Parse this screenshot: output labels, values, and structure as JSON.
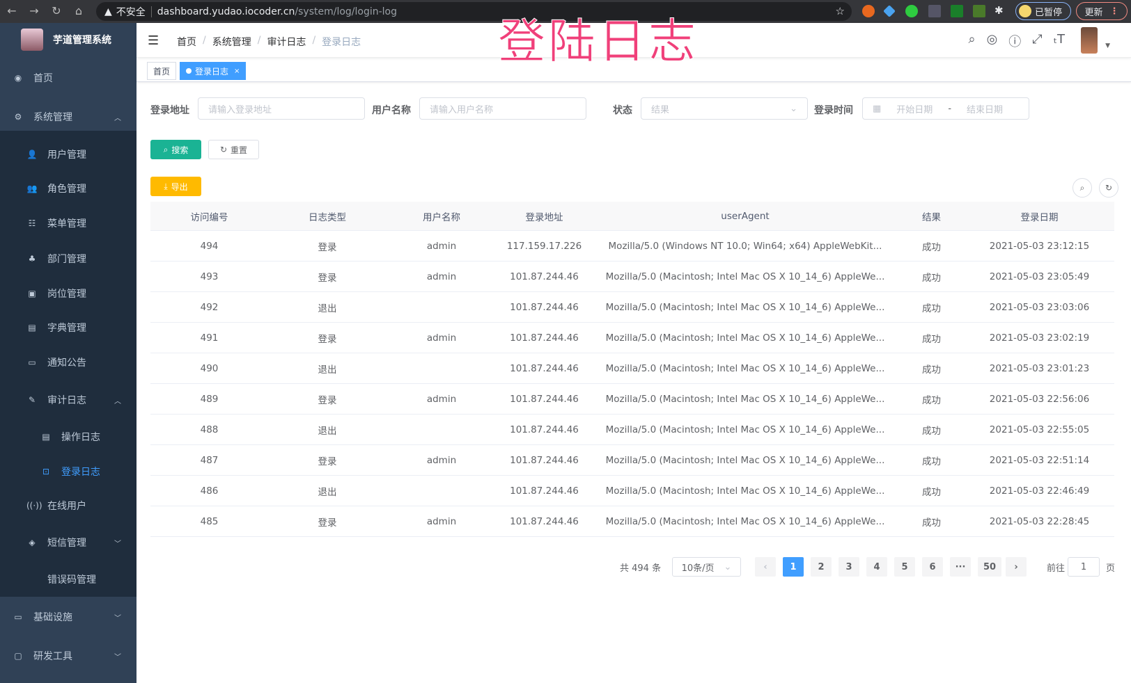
{
  "browser": {
    "insecure_label": "不安全",
    "url_host": "dashboard.yudao.iocoder.cn",
    "url_path": "/system/log/login-log",
    "paused_label": "已暂停",
    "update_label": "更新"
  },
  "overlay_title": "登陆日志",
  "sidebar": {
    "brand": "芋道管理系统",
    "items": [
      {
        "label": "首页",
        "icon": "dashboard-icon"
      },
      {
        "label": "系统管理",
        "icon": "gear-icon",
        "expanded": true
      },
      {
        "label": "用户管理",
        "icon": "user-icon"
      },
      {
        "label": "角色管理",
        "icon": "peoples-icon"
      },
      {
        "label": "菜单管理",
        "icon": "tree-table-icon"
      },
      {
        "label": "部门管理",
        "icon": "tree-icon"
      },
      {
        "label": "岗位管理",
        "icon": "post-icon"
      },
      {
        "label": "字典管理",
        "icon": "dict-icon"
      },
      {
        "label": "通知公告",
        "icon": "message-icon"
      },
      {
        "label": "审计日志",
        "icon": "log-icon",
        "expanded": true
      },
      {
        "label": "操作日志",
        "icon": "form-icon"
      },
      {
        "label": "登录日志",
        "icon": "logininfor-icon",
        "active": true
      },
      {
        "label": "在线用户",
        "icon": "online-icon"
      },
      {
        "label": "短信管理",
        "icon": "validCode-icon"
      },
      {
        "label": "错误码管理",
        "icon": "code-icon"
      },
      {
        "label": "基础设施",
        "icon": "monitor-icon"
      },
      {
        "label": "研发工具",
        "icon": "tool-icon"
      }
    ]
  },
  "breadcrumb": [
    "首页",
    "系统管理",
    "审计日志",
    "登录日志"
  ],
  "tags": [
    {
      "label": "首页"
    },
    {
      "label": "登录日志",
      "active": true
    }
  ],
  "filters": {
    "address": {
      "label": "登录地址",
      "placeholder": "请输入登录地址"
    },
    "username": {
      "label": "用户名称",
      "placeholder": "请输入用户名称"
    },
    "status": {
      "label": "状态",
      "placeholder": "结果"
    },
    "time": {
      "label": "登录时间",
      "start_placeholder": "开始日期",
      "end_placeholder": "结束日期",
      "separator": "-"
    }
  },
  "buttons": {
    "search": "搜索",
    "reset": "重置",
    "export": "导出"
  },
  "table": {
    "columns": [
      "访问编号",
      "日志类型",
      "用户名称",
      "登录地址",
      "userAgent",
      "结果",
      "登录日期"
    ],
    "rows": [
      [
        "494",
        "登录",
        "admin",
        "117.159.17.226",
        "Mozilla/5.0 (Windows NT 10.0; Win64; x64) AppleWebKit...",
        "成功",
        "2021-05-03 23:12:15"
      ],
      [
        "493",
        "登录",
        "admin",
        "101.87.244.46",
        "Mozilla/5.0 (Macintosh; Intel Mac OS X 10_14_6) AppleWe...",
        "成功",
        "2021-05-03 23:05:49"
      ],
      [
        "492",
        "退出",
        "",
        "101.87.244.46",
        "Mozilla/5.0 (Macintosh; Intel Mac OS X 10_14_6) AppleWe...",
        "成功",
        "2021-05-03 23:03:06"
      ],
      [
        "491",
        "登录",
        "admin",
        "101.87.244.46",
        "Mozilla/5.0 (Macintosh; Intel Mac OS X 10_14_6) AppleWe...",
        "成功",
        "2021-05-03 23:02:19"
      ],
      [
        "490",
        "退出",
        "",
        "101.87.244.46",
        "Mozilla/5.0 (Macintosh; Intel Mac OS X 10_14_6) AppleWe...",
        "成功",
        "2021-05-03 23:01:23"
      ],
      [
        "489",
        "登录",
        "admin",
        "101.87.244.46",
        "Mozilla/5.0 (Macintosh; Intel Mac OS X 10_14_6) AppleWe...",
        "成功",
        "2021-05-03 22:56:06"
      ],
      [
        "488",
        "退出",
        "",
        "101.87.244.46",
        "Mozilla/5.0 (Macintosh; Intel Mac OS X 10_14_6) AppleWe...",
        "成功",
        "2021-05-03 22:55:05"
      ],
      [
        "487",
        "登录",
        "admin",
        "101.87.244.46",
        "Mozilla/5.0 (Macintosh; Intel Mac OS X 10_14_6) AppleWe...",
        "成功",
        "2021-05-03 22:51:14"
      ],
      [
        "486",
        "退出",
        "",
        "101.87.244.46",
        "Mozilla/5.0 (Macintosh; Intel Mac OS X 10_14_6) AppleWe...",
        "成功",
        "2021-05-03 22:46:49"
      ],
      [
        "485",
        "登录",
        "admin",
        "101.87.244.46",
        "Mozilla/5.0 (Macintosh; Intel Mac OS X 10_14_6) AppleWe...",
        "成功",
        "2021-05-03 22:28:45"
      ]
    ]
  },
  "pagination": {
    "total": "共 494 条",
    "page_size": "10条/页",
    "pages": [
      "1",
      "2",
      "3",
      "4",
      "5",
      "6",
      "···",
      "50"
    ],
    "current": "1",
    "goto_label": "前往",
    "goto_value": "1",
    "page_suffix": "页"
  },
  "colors": {
    "sidebar": "#304156",
    "submenu": "#1f2d3d",
    "primary": "#409eff",
    "search_btn": "#1ab394",
    "export_btn": "#ffba00",
    "overlay": "#f0407a"
  }
}
